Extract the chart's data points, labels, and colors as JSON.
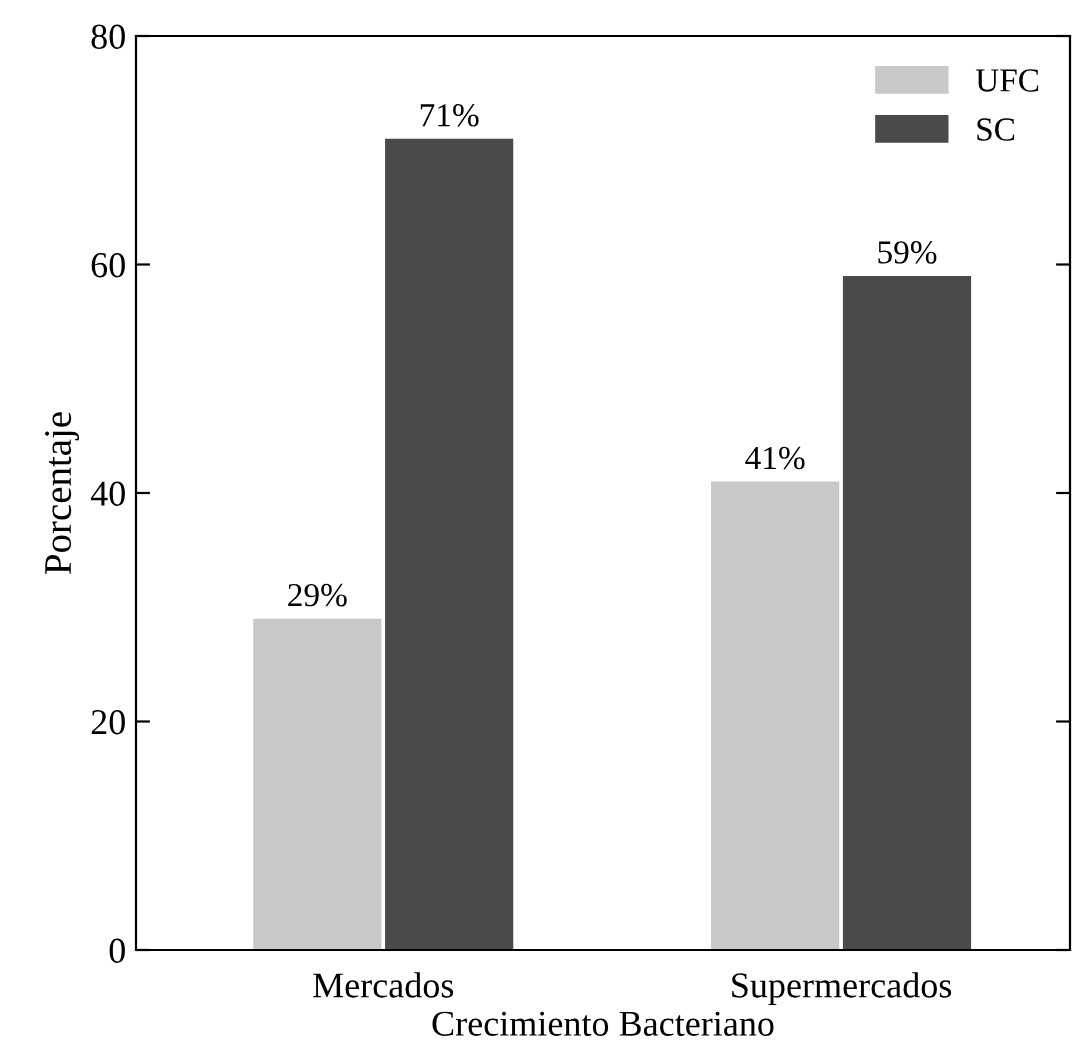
{
  "chart_data": {
    "type": "bar",
    "xlabel": "Crecimiento Bacteriano",
    "ylabel": "Porcentaje",
    "categories": [
      "Mercados",
      "Supermercados"
    ],
    "series": [
      {
        "name": "UFC",
        "color": "#c8c8c8",
        "values": [
          29,
          41
        ],
        "value_labels": [
          "29%",
          "41%"
        ]
      },
      {
        "name": "SC",
        "color": "#4a4a4a",
        "values": [
          71,
          59
        ],
        "value_labels": [
          "71%",
          "59%"
        ]
      }
    ],
    "ylim": [
      0,
      80
    ],
    "yticks": [
      0,
      20,
      40,
      60,
      80
    ],
    "grid": false,
    "legend": "top right"
  }
}
